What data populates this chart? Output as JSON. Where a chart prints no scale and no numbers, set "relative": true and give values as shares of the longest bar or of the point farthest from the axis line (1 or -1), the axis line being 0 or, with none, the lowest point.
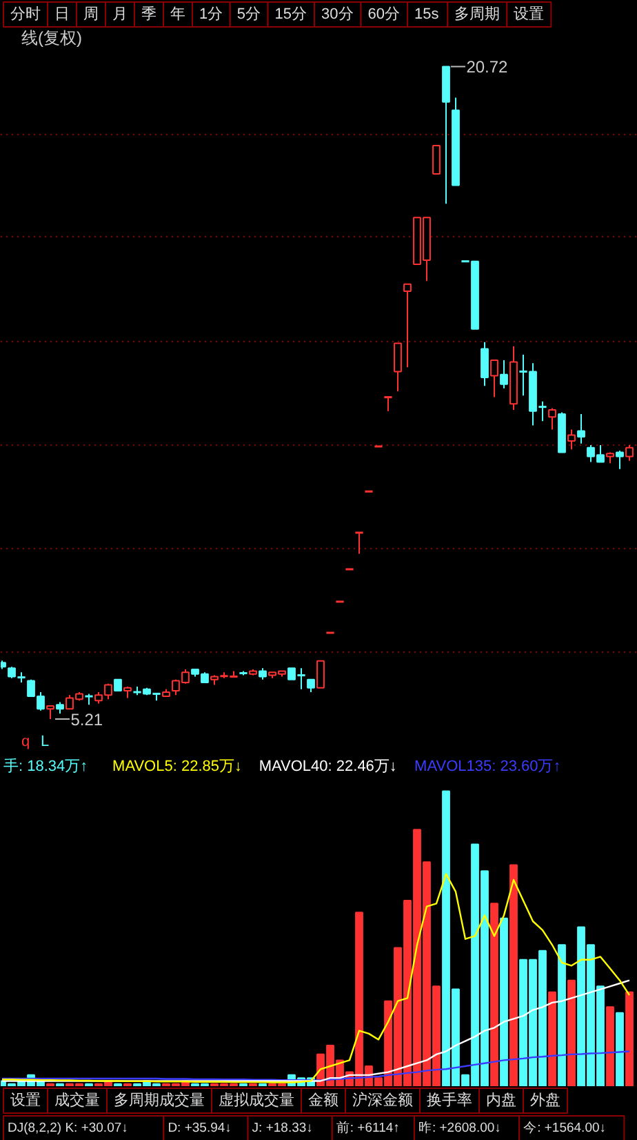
{
  "chart_data": [
    {
      "type": "other",
      "annotations": [
        "分时",
        "日",
        "周",
        "月",
        "季",
        "年",
        "1分",
        "5分",
        "15分",
        "30分",
        "60分",
        "15s",
        "多周期",
        "设置"
      ]
    },
    {
      "type": "candlestick",
      "title": "线(复权)",
      "categories": [
        null,
        null,
        null,
        null,
        null,
        null,
        null,
        null,
        null,
        null,
        null,
        null,
        null,
        null,
        null,
        null,
        null,
        null,
        null,
        null,
        null,
        null,
        null,
        null,
        null,
        null,
        null,
        null,
        null,
        null,
        null,
        null,
        null,
        null,
        null,
        null,
        null,
        null,
        null,
        null,
        null,
        null,
        null,
        null,
        null,
        null,
        null,
        null,
        null,
        null,
        null,
        null,
        null,
        null,
        null,
        null,
        null,
        null,
        null,
        null,
        null,
        null,
        null,
        null,
        null,
        null
      ],
      "ohlc": [
        [
          6.55,
          6.6,
          6.4,
          6.45
        ],
        [
          6.42,
          6.45,
          6.18,
          6.22
        ],
        [
          6.2,
          6.32,
          6.08,
          6.2
        ],
        [
          6.12,
          6.15,
          5.75,
          5.75
        ],
        [
          5.75,
          5.85,
          5.41,
          5.45
        ],
        [
          5.45,
          5.52,
          5.21,
          5.52
        ],
        [
          5.55,
          5.61,
          5.34,
          5.45
        ],
        [
          5.45,
          5.78,
          5.45,
          5.71
        ],
        [
          5.68,
          5.85,
          5.65,
          5.81
        ],
        [
          5.75,
          5.81,
          5.55,
          5.75
        ],
        [
          5.65,
          5.85,
          5.58,
          5.78
        ],
        [
          5.78,
          6.05,
          5.68,
          6.02
        ],
        [
          6.15,
          6.15,
          5.88,
          5.88
        ],
        [
          5.88,
          5.98,
          5.71,
          5.95
        ],
        [
          5.85,
          5.98,
          5.78,
          5.85
        ],
        [
          5.92,
          5.95,
          5.78,
          5.81
        ],
        [
          5.81,
          5.81,
          5.65,
          5.81
        ],
        [
          5.75,
          5.92,
          5.75,
          5.85
        ],
        [
          5.88,
          6.15,
          5.78,
          6.12
        ],
        [
          6.08,
          6.39,
          6.05,
          6.32
        ],
        [
          6.39,
          6.39,
          6.22,
          6.28
        ],
        [
          6.28,
          6.32,
          6.08,
          6.08
        ],
        [
          6.15,
          6.25,
          6.02,
          6.22
        ],
        [
          6.23,
          6.32,
          6.18,
          6.23
        ],
        [
          6.22,
          6.35,
          6.22,
          6.22
        ],
        [
          6.3,
          6.35,
          6.25,
          6.3
        ],
        [
          6.28,
          6.39,
          6.25,
          6.35
        ],
        [
          6.35,
          6.42,
          6.15,
          6.22
        ],
        [
          6.25,
          6.32,
          6.18,
          6.32
        ],
        [
          6.28,
          6.35,
          6.22,
          6.35
        ],
        [
          6.42,
          6.42,
          6.15,
          6.15
        ],
        [
          6.25,
          6.42,
          5.92,
          6.25
        ],
        [
          6.15,
          6.15,
          5.85,
          5.95
        ],
        [
          5.95,
          6.59,
          5.95,
          6.59
        ],
        [
          7.26,
          7.26,
          7.26,
          7.26
        ],
        [
          8.0,
          8.0,
          8.0,
          8.0
        ],
        [
          8.77,
          8.77,
          8.77,
          8.77
        ],
        [
          9.64,
          9.64,
          9.14,
          9.64
        ],
        [
          10.62,
          10.62,
          10.62,
          10.62
        ],
        [
          11.69,
          11.69,
          11.69,
          11.69
        ],
        [
          12.86,
          12.86,
          12.53,
          12.86
        ],
        [
          13.47,
          14.14,
          13.0,
          14.14
        ],
        [
          15.38,
          15.55,
          13.57,
          15.55
        ],
        [
          16.02,
          17.13,
          16.02,
          17.13
        ],
        [
          16.12,
          17.13,
          15.62,
          17.13
        ],
        [
          18.17,
          18.84,
          18.17,
          18.84
        ],
        [
          20.72,
          20.72,
          17.46,
          19.88
        ],
        [
          19.68,
          19.98,
          17.9,
          17.9
        ],
        [
          16.09,
          16.09,
          16.09,
          16.09
        ],
        [
          16.09,
          16.09,
          14.48,
          14.48
        ],
        [
          14.01,
          14.17,
          13.13,
          13.33
        ],
        [
          13.37,
          13.74,
          12.86,
          13.74
        ],
        [
          13.4,
          13.74,
          13.07,
          13.17
        ],
        [
          12.7,
          14.07,
          12.56,
          13.7
        ],
        [
          13.47,
          13.87,
          12.9,
          13.47
        ],
        [
          13.47,
          13.67,
          12.19,
          12.53
        ],
        [
          12.63,
          12.76,
          12.29,
          12.63
        ],
        [
          12.39,
          12.6,
          12.09,
          12.56
        ],
        [
          12.46,
          12.5,
          11.55,
          11.55
        ],
        [
          11.82,
          12.09,
          11.62,
          11.96
        ],
        [
          12.06,
          12.46,
          11.76,
          11.92
        ],
        [
          11.66,
          11.72,
          11.32,
          11.45
        ],
        [
          11.49,
          11.72,
          11.32,
          11.32
        ],
        [
          11.45,
          11.55,
          11.29,
          11.52
        ],
        [
          11.55,
          11.59,
          11.15,
          11.45
        ],
        [
          11.45,
          11.72,
          11.35,
          11.66
        ]
      ],
      "colors": [
        "#54fcfc",
        "#54fcfc",
        "#54fcfc",
        "#54fcfc",
        "#54fcfc",
        "#ff3232",
        "#54fcfc",
        "#ff3232",
        "#ff3232",
        "#54fcfc",
        "#ff3232",
        "#ff3232",
        "#54fcfc",
        "#ff3232",
        "#54fcfc",
        "#54fcfc",
        "#54fcfc",
        "#ff3232",
        "#ff3232",
        "#ff3232",
        "#54fcfc",
        "#54fcfc",
        "#ff3232",
        "#ff3232",
        "#ff3232",
        "#54fcfc",
        "#ff3232",
        "#54fcfc",
        "#ff3232",
        "#ff3232",
        "#54fcfc",
        "#54fcfc",
        "#54fcfc",
        "#ff3232",
        "#ff3232",
        "#ff3232",
        "#ff3232",
        "#ff3232",
        "#ff3232",
        "#ff3232",
        "#ff3232",
        "#ff3232",
        "#ff3232",
        "#ff3232",
        "#ff3232",
        "#ff3232",
        "#54fcfc",
        "#54fcfc",
        "#54fcfc",
        "#54fcfc",
        "#54fcfc",
        "#ff3232",
        "#54fcfc",
        "#ff3232",
        "#54fcfc",
        "#54fcfc",
        "#54fcfc",
        "#ff3232",
        "#54fcfc",
        "#ff3232",
        "#54fcfc",
        "#54fcfc",
        "#54fcfc",
        "#ff3232",
        "#54fcfc",
        "#ff3232"
      ],
      "ylim": [
        4.34,
        21.63
      ],
      "yticks": [
        {
          "value": 6.79,
          "label": null
        },
        {
          "value": 9.27,
          "label": null
        },
        {
          "value": 11.72,
          "label": null
        },
        {
          "value": 14.17,
          "label": null
        },
        {
          "value": 16.66,
          "label": null
        },
        {
          "value": 19.11,
          "label": null
        }
      ],
      "grid": "y",
      "annotations": [
        "20.72",
        "5.21",
        "q",
        "L"
      ]
    },
    {
      "type": "bar",
      "relative": true,
      "legend": "top",
      "categories": [
        null,
        null,
        null,
        null,
        null,
        null,
        null,
        null,
        null,
        null,
        null,
        null,
        null,
        null,
        null,
        null,
        null,
        null,
        null,
        null,
        null,
        null,
        null,
        null,
        null,
        null,
        null,
        null,
        null,
        null,
        null,
        null,
        null,
        null,
        null,
        null,
        null,
        null,
        null,
        null,
        null,
        null,
        null,
        null,
        null,
        null,
        null,
        null,
        null,
        null,
        null,
        null,
        null,
        null,
        null,
        null,
        null,
        null,
        null,
        null,
        null,
        null,
        null,
        null,
        null,
        null
      ],
      "series": [
        {
          "type": "bar",
          "name": "手: 18.34万↑",
          "color": "#54fcfc",
          "colors": [
            "#54fcfc",
            "#54fcfc",
            "#54fcfc",
            "#54fcfc",
            "#54fcfc",
            "#ff3232",
            "#54fcfc",
            "#ff3232",
            "#ff3232",
            "#54fcfc",
            "#ff3232",
            "#ff3232",
            "#54fcfc",
            "#ff3232",
            "#54fcfc",
            "#54fcfc",
            "#54fcfc",
            "#ff3232",
            "#ff3232",
            "#ff3232",
            "#54fcfc",
            "#54fcfc",
            "#ff3232",
            "#ff3232",
            "#ff3232",
            "#54fcfc",
            "#ff3232",
            "#54fcfc",
            "#ff3232",
            "#ff3232",
            "#54fcfc",
            "#54fcfc",
            "#54fcfc",
            "#ff3232",
            "#ff3232",
            "#ff3232",
            "#ff3232",
            "#ff3232",
            "#ff3232",
            "#ff3232",
            "#ff3232",
            "#ff3232",
            "#ff3232",
            "#ff3232",
            "#ff3232",
            "#ff3232",
            "#54fcfc",
            "#54fcfc",
            "#54fcfc",
            "#54fcfc",
            "#54fcfc",
            "#ff3232",
            "#54fcfc",
            "#ff3232",
            "#54fcfc",
            "#54fcfc",
            "#54fcfc",
            "#ff3232",
            "#54fcfc",
            "#ff3232",
            "#54fcfc",
            "#54fcfc",
            "#54fcfc",
            "#ff3232",
            "#54fcfc",
            "#ff3232"
          ],
          "values": [
            0.02,
            0.01,
            0.02,
            0.04,
            0.02,
            0.01,
            0.01,
            0.01,
            0.01,
            0.01,
            0.01,
            0.02,
            0.01,
            0.01,
            0.01,
            0.02,
            0.01,
            0.01,
            0.01,
            0.02,
            0.01,
            0.01,
            0.01,
            0.01,
            0.01,
            0.01,
            0.01,
            0.01,
            0.01,
            0.01,
            0.04,
            0.03,
            0.03,
            0.11,
            0.14,
            0.09,
            0.05,
            0.59,
            0.07,
            0.03,
            0.29,
            0.47,
            0.63,
            0.87,
            0.76,
            0.34,
            1,
            0.33,
            0.04,
            0.82,
            0.73,
            0.62,
            0.57,
            0.75,
            0.43,
            0.43,
            0.46,
            0.32,
            0.48,
            0.36,
            0.54,
            0.48,
            0.34,
            0.27,
            0.25,
            0.32
          ]
        },
        {
          "type": "line",
          "name": "MAVOL5: 22.85万↓",
          "color": "#ffff00",
          "values": [
            0.025,
            0.025,
            0.024,
            0.024,
            0.023,
            0.023,
            0.022,
            0.022,
            0.021,
            0.021,
            0.02,
            0.02,
            0.02,
            0.019,
            0.019,
            0.019,
            0.018,
            0.018,
            0.018,
            0.018,
            0.017,
            0.017,
            0.017,
            0.017,
            0.016,
            0.016,
            0.016,
            0.016,
            0.015,
            0.015,
            0.015,
            0.017,
            0.02,
            0.06,
            0.07,
            0.08,
            0.09,
            0.19,
            0.18,
            0.16,
            0.22,
            0.29,
            0.3,
            0.48,
            0.61,
            0.62,
            0.72,
            0.66,
            0.5,
            0.51,
            0.58,
            0.51,
            0.58,
            0.7,
            0.63,
            0.56,
            0.53,
            0.48,
            0.42,
            0.41,
            0.43,
            0.43,
            0.44,
            0.4,
            0.36,
            0.31
          ]
        },
        {
          "type": "line",
          "name": "MAVOL40: 22.46万↓",
          "color": "#ffffff",
          "values": [
            0.02,
            0.02,
            0.02,
            0.02,
            0.02,
            0.02,
            0.02,
            0.02,
            0.02,
            0.02,
            0.02,
            0.02,
            0.02,
            0.02,
            0.02,
            0.02,
            0.02,
            0.02,
            0.02,
            0.02,
            0.02,
            0.02,
            0.02,
            0.02,
            0.02,
            0.02,
            0.02,
            0.02,
            0.02,
            0.02,
            0.02,
            0.02,
            0.02,
            0.02,
            0.03,
            0.03,
            0.04,
            0.04,
            0.04,
            0.045,
            0.05,
            0.06,
            0.07,
            0.08,
            0.09,
            0.11,
            0.12,
            0.14,
            0.155,
            0.17,
            0.19,
            0.2,
            0.22,
            0.23,
            0.24,
            0.26,
            0.27,
            0.285,
            0.29,
            0.3,
            0.31,
            0.32,
            0.33,
            0.34,
            0.35,
            0.36
          ]
        },
        {
          "type": "line",
          "name": "MAVOL135: 23.60万↑",
          "color": "#3c3cff",
          "values": [
            0.028,
            0.028,
            0.028,
            0.028,
            0.028,
            0.028,
            0.028,
            0.028,
            0.028,
            0.028,
            0.028,
            0.028,
            0.028,
            0.028,
            0.028,
            0.028,
            0.028,
            0.027,
            0.027,
            0.027,
            0.026,
            0.026,
            0.026,
            0.025,
            0.025,
            0.025,
            0.024,
            0.024,
            0.024,
            0.023,
            0.023,
            0.023,
            0.022,
            0.022,
            0.025,
            0.027,
            0.029,
            0.031,
            0.033,
            0.035,
            0.04,
            0.043,
            0.047,
            0.05,
            0.055,
            0.058,
            0.06,
            0.065,
            0.07,
            0.075,
            0.08,
            0.085,
            0.09,
            0.093,
            0.096,
            0.1,
            0.102,
            0.105,
            0.107,
            0.11,
            0.111,
            0.113,
            0.114,
            0.116,
            0.118,
            0.12
          ]
        }
      ]
    },
    {
      "type": "other",
      "annotations": [
        "设置",
        "成交量",
        "多周期成交量",
        "虚拟成交量",
        "金额",
        "沪深金额",
        "换手率",
        "内盘",
        "外盘"
      ]
    },
    {
      "type": "other",
      "annotations": [
        "DJ(8,2,2) K: +30.07↓",
        "D: +35.94↓",
        "J: +18.33↓",
        "前: +6114↑",
        "昨: +2608.00↓",
        "今: +1564.00↓"
      ]
    }
  ]
}
